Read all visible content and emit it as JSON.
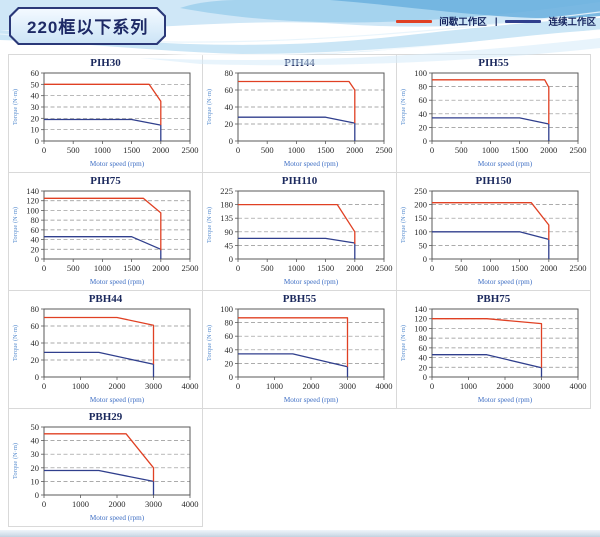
{
  "header": {
    "title": "220框以下系列",
    "legend": [
      {
        "label": "间歇工作区",
        "color": "#e04023"
      },
      {
        "label": "连续工作区",
        "color": "#303f8d"
      }
    ],
    "legend_separator": "|"
  },
  "chart_data": [
    {
      "type": "line",
      "title": "PIH30",
      "xlabel": "Motor speed (rpm)",
      "ylabel": "Torque (N·m)",
      "xlim": [
        0,
        2500
      ],
      "xstep": 500,
      "ylim": [
        0,
        60
      ],
      "ystep": 10,
      "grid": "dashed-horizontal",
      "legend_position": "none",
      "series": [
        {
          "name": "间歇工作区",
          "color": "#e04023",
          "points": [
            [
              0,
              50
            ],
            [
              1800,
              50
            ],
            [
              2000,
              35
            ],
            [
              2000,
              14
            ]
          ]
        },
        {
          "name": "连续工作区",
          "color": "#303f8d",
          "points": [
            [
              0,
              19
            ],
            [
              1500,
              19
            ],
            [
              2000,
              14
            ],
            [
              2000,
              0
            ]
          ]
        }
      ]
    },
    {
      "type": "line",
      "title": "PIH44",
      "xlabel": "Motor speed (rpm)",
      "ylabel": "Torque (N·m)",
      "xlim": [
        0,
        2500
      ],
      "xstep": 500,
      "ylim": [
        0,
        80
      ],
      "ystep": 20,
      "grid": "dashed-horizontal",
      "legend_position": "none",
      "series": [
        {
          "name": "间歇工作区",
          "color": "#e04023",
          "points": [
            [
              0,
              70
            ],
            [
              1900,
              70
            ],
            [
              2000,
              60
            ],
            [
              2000,
              21
            ]
          ]
        },
        {
          "name": "连续工作区",
          "color": "#303f8d",
          "points": [
            [
              0,
              28
            ],
            [
              1500,
              28
            ],
            [
              2000,
              21
            ],
            [
              2000,
              0
            ]
          ]
        }
      ]
    },
    {
      "type": "line",
      "title": "PIH55",
      "xlabel": "Motor speed (rpm)",
      "ylabel": "Torque (N·m)",
      "xlim": [
        0,
        2500
      ],
      "xstep": 500,
      "ylim": [
        0,
        100
      ],
      "ystep": 20,
      "grid": "dashed-horizontal",
      "legend_position": "none",
      "series": [
        {
          "name": "间歇工作区",
          "color": "#e04023",
          "points": [
            [
              0,
              90
            ],
            [
              1930,
              90
            ],
            [
              2000,
              79
            ],
            [
              2000,
              25
            ]
          ]
        },
        {
          "name": "连续工作区",
          "color": "#303f8d",
          "points": [
            [
              0,
              34
            ],
            [
              1500,
              34
            ],
            [
              2000,
              25
            ],
            [
              2000,
              0
            ]
          ]
        }
      ]
    },
    {
      "type": "line",
      "title": "PIH75",
      "xlabel": "Motor speed (rpm)",
      "ylabel": "Torque (N·m)",
      "xlim": [
        0,
        2500
      ],
      "xstep": 500,
      "ylim": [
        0,
        140
      ],
      "ystep": 20,
      "grid": "dashed-horizontal",
      "legend_position": "none",
      "series": [
        {
          "name": "间歇工作区",
          "color": "#e04023",
          "points": [
            [
              0,
              125
            ],
            [
              1700,
              125
            ],
            [
              2000,
              95
            ],
            [
              2000,
              18
            ]
          ]
        },
        {
          "name": "连续工作区",
          "color": "#303f8d",
          "points": [
            [
              0,
              46
            ],
            [
              1500,
              46
            ],
            [
              2000,
              20
            ],
            [
              2000,
              0
            ]
          ]
        }
      ]
    },
    {
      "type": "line",
      "title": "PIH110",
      "xlabel": "Motor speed (rpm)",
      "ylabel": "Torque (N·m)",
      "xlim": [
        0,
        2500
      ],
      "xstep": 500,
      "ylim": [
        0,
        225
      ],
      "ystep": 45,
      "grid": "dashed-horizontal",
      "legend_position": "none",
      "series": [
        {
          "name": "间歇工作区",
          "color": "#e04023",
          "points": [
            [
              0,
              180
            ],
            [
              1700,
              180
            ],
            [
              2000,
              90
            ],
            [
              2000,
              50
            ]
          ]
        },
        {
          "name": "连续工作区",
          "color": "#303f8d",
          "points": [
            [
              0,
              68
            ],
            [
              1500,
              68
            ],
            [
              2000,
              53
            ],
            [
              2000,
              0
            ]
          ]
        }
      ]
    },
    {
      "type": "line",
      "title": "PIH150",
      "xlabel": "Motor speed (rpm)",
      "ylabel": "Torque (N·m)",
      "xlim": [
        0,
        2500
      ],
      "xstep": 500,
      "ylim": [
        0,
        250
      ],
      "ystep": 50,
      "grid": "dashed-horizontal",
      "legend_position": "none",
      "series": [
        {
          "name": "间歇工作区",
          "color": "#e04023",
          "points": [
            [
              0,
              207
            ],
            [
              1700,
              207
            ],
            [
              2000,
              125
            ],
            [
              2000,
              70
            ]
          ]
        },
        {
          "name": "连续工作区",
          "color": "#303f8d",
          "points": [
            [
              0,
              100
            ],
            [
              1500,
              100
            ],
            [
              2000,
              72
            ],
            [
              2000,
              0
            ]
          ]
        }
      ]
    },
    {
      "type": "line",
      "title": "PBH44",
      "xlabel": "Motor speed (rpm)",
      "ylabel": "Torque (N·m)",
      "xlim": [
        0,
        4000
      ],
      "xstep": 1000,
      "ylim": [
        0,
        80
      ],
      "ystep": 20,
      "grid": "dashed-horizontal",
      "legend_position": "none",
      "series": [
        {
          "name": "间歇工作区",
          "color": "#e04023",
          "points": [
            [
              0,
              70
            ],
            [
              2000,
              70
            ],
            [
              3000,
              61
            ],
            [
              3000,
              15
            ]
          ]
        },
        {
          "name": "连续工作区",
          "color": "#303f8d",
          "points": [
            [
              0,
              29
            ],
            [
              1500,
              29
            ],
            [
              3000,
              15
            ],
            [
              3000,
              0
            ]
          ]
        }
      ]
    },
    {
      "type": "line",
      "title": "PBH55",
      "xlabel": "Motor speed (rpm)",
      "ylabel": "Torque (N·m)",
      "xlim": [
        0,
        4000
      ],
      "xstep": 1000,
      "ylim": [
        0,
        100
      ],
      "ystep": 20,
      "grid": "dashed-horizontal",
      "legend_position": "none",
      "series": [
        {
          "name": "间歇工作区",
          "color": "#e04023",
          "points": [
            [
              0,
              87
            ],
            [
              3000,
              87
            ],
            [
              3000,
              15
            ]
          ]
        },
        {
          "name": "连续工作区",
          "color": "#303f8d",
          "points": [
            [
              0,
              34
            ],
            [
              1500,
              34
            ],
            [
              3000,
              15
            ],
            [
              3000,
              0
            ]
          ]
        }
      ]
    },
    {
      "type": "line",
      "title": "PBH75",
      "xlabel": "Motor speed (rpm)",
      "ylabel": "Torque (N·m)",
      "xlim": [
        0,
        4000
      ],
      "xstep": 1000,
      "ylim": [
        0,
        140
      ],
      "ystep": 20,
      "grid": "dashed-horizontal",
      "legend_position": "none",
      "series": [
        {
          "name": "间歇工作区",
          "color": "#e04023",
          "points": [
            [
              0,
              120
            ],
            [
              1500,
              120
            ],
            [
              3000,
              110
            ],
            [
              3000,
              19
            ]
          ]
        },
        {
          "name": "连续工作区",
          "color": "#303f8d",
          "points": [
            [
              0,
              46
            ],
            [
              1500,
              46
            ],
            [
              3000,
              19
            ],
            [
              3000,
              0
            ]
          ]
        }
      ]
    },
    {
      "type": "line",
      "title": "PBH29",
      "xlabel": "Motor speed (rpm)",
      "ylabel": "Torque (N·m)",
      "xlim": [
        0,
        4000
      ],
      "xstep": 1000,
      "ylim": [
        0,
        50
      ],
      "ystep": 10,
      "grid": "dashed-horizontal",
      "legend_position": "none",
      "series": [
        {
          "name": "间歇工作区",
          "color": "#e04023",
          "points": [
            [
              0,
              45
            ],
            [
              2250,
              45
            ],
            [
              3000,
              20
            ],
            [
              3000,
              10
            ]
          ]
        },
        {
          "name": "连续工作区",
          "color": "#303f8d",
          "points": [
            [
              0,
              18
            ],
            [
              1500,
              18
            ],
            [
              3000,
              10
            ],
            [
              3000,
              0
            ]
          ]
        }
      ]
    }
  ]
}
